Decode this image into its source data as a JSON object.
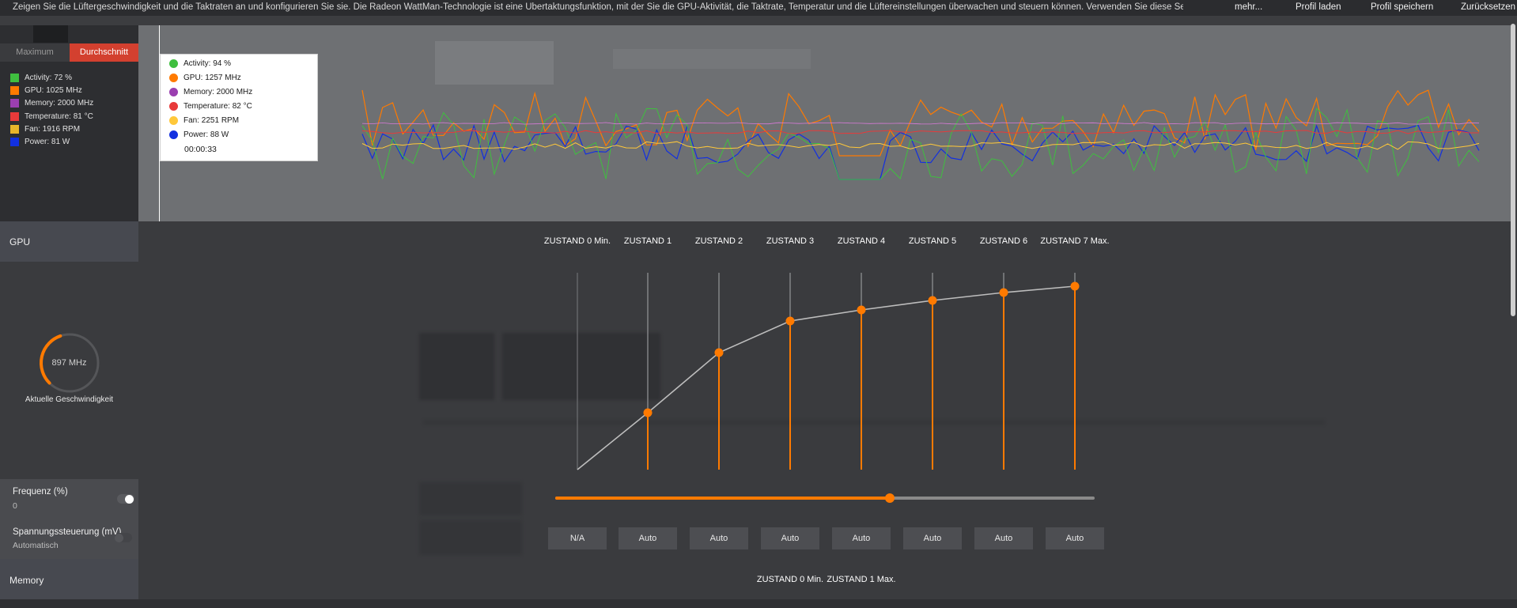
{
  "topbar": {
    "description": "Zeigen Sie die Lüftergeschwindigkeit und die Taktraten an und konfigurieren Sie sie. Die Radeon WattMan-Technologie ist eine Übertaktungsfunktion, mit der Sie die GPU-Aktivität, die Taktrate, Temperatur und die Lüftereinstellungen überwachen und steuern können. Verwenden Sie diese Seite, um di...",
    "more_label": "mehr...",
    "load_profile_label": "Profil laden",
    "save_profile_label": "Profil speichern",
    "reset_label": "Zurücksetzen"
  },
  "graph": {
    "tabs": {
      "max_label": "Maximum",
      "avg_label": "Durchschnitt",
      "active": "avg"
    },
    "legend": [
      {
        "label": "Activity: 72 %",
        "color": "#3fbf3f"
      },
      {
        "label": "GPU: 1025 MHz",
        "color": "#ff7a00"
      },
      {
        "label": "Memory: 2000 MHz",
        "color": "#9b3fb0"
      },
      {
        "label": "Temperature: 81 °C",
        "color": "#e83a3a"
      },
      {
        "label": "Fan: 1916 RPM",
        "color": "#e8b52a"
      },
      {
        "label": "Power: 81 W",
        "color": "#1230e0"
      }
    ],
    "tooltip": {
      "rows": [
        {
          "label": "Activity: 94 %",
          "color": "#3fbf3f"
        },
        {
          "label": "GPU: 1257 MHz",
          "color": "#ff7a00"
        },
        {
          "label": "Memory: 2000 MHz",
          "color": "#9b3fb0"
        },
        {
          "label": "Temperature: 82 °C",
          "color": "#e83a3a"
        },
        {
          "label": "Fan: 2251 RPM",
          "color": "#ffc83a"
        },
        {
          "label": "Power: 88 W",
          "color": "#1230e0"
        }
      ],
      "time": "00:00:33"
    }
  },
  "gpu": {
    "section_label": "GPU",
    "states": [
      "ZUSTAND 0 Min.",
      "ZUSTAND 1",
      "ZUSTAND 2",
      "ZUSTAND 3",
      "ZUSTAND 4",
      "ZUSTAND 5",
      "ZUSTAND 6",
      "ZUSTAND 7 Max."
    ],
    "state_curve_fractions": [
      0.0,
      0.18,
      0.37,
      0.47,
      0.505,
      0.535,
      0.56,
      0.58
    ],
    "current_speed_value": "897 MHz",
    "current_speed_label": "Aktuelle Geschwindigkeit",
    "gauge_fraction": 0.43,
    "frequency": {
      "title": "Frequenz (%)",
      "value": "0",
      "enabled": true,
      "slider_fraction": 0.62
    },
    "voltage": {
      "title": "Spannungssteuerung (mV)",
      "value": "Automatisch",
      "enabled": false,
      "values": [
        "N/A",
        "Auto",
        "Auto",
        "Auto",
        "Auto",
        "Auto",
        "Auto",
        "Auto"
      ]
    },
    "accent_color": "#ff7a00"
  },
  "memory": {
    "section_label": "Memory",
    "states": [
      "ZUSTAND 0 Min.",
      "ZUSTAND 1 Max."
    ]
  }
}
